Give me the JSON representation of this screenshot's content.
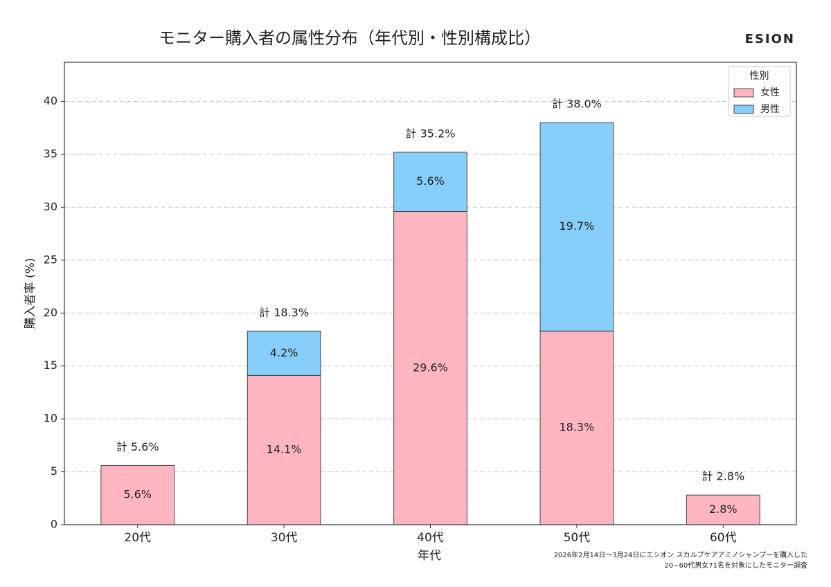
{
  "chart_data": {
    "type": "stacked_bar",
    "title": "モニター購入者の属性分布（年代別・性別構成比）",
    "brand": "ESION",
    "x_label": "年代",
    "y_label": "購入者率 (%)",
    "categories": [
      "20代",
      "30代",
      "40代",
      "50代",
      "60代"
    ],
    "series": [
      {
        "name": "女性",
        "color": "#ffb6c1",
        "values": [
          5.6,
          14.1,
          29.6,
          18.3,
          2.8
        ],
        "value_labels": [
          "5.6%",
          "14.1%",
          "29.6%",
          "18.3%",
          "2.8%"
        ]
      },
      {
        "name": "男性",
        "color": "#87cefa",
        "values": [
          null,
          4.2,
          5.6,
          19.7,
          null
        ],
        "value_labels": [
          null,
          "4.2%",
          "5.6%",
          "19.7%",
          null
        ]
      }
    ],
    "total_labels": [
      "計 5.6%",
      "計 18.3%",
      "計 35.2%",
      "計 38.0%",
      "計 2.8%"
    ],
    "legend_title": "性別",
    "legend_position": "upper right",
    "ylim": [
      0,
      43.7
    ],
    "yticks": [
      0,
      5,
      10,
      15,
      20,
      25,
      30,
      35,
      40
    ],
    "grid": true,
    "footnote": [
      "2026年2月14日〜3月24日にエシオン スカルプケアアミノシャンプーを購入した",
      "20~60代男女71名を対象にしたモニター調査"
    ]
  }
}
